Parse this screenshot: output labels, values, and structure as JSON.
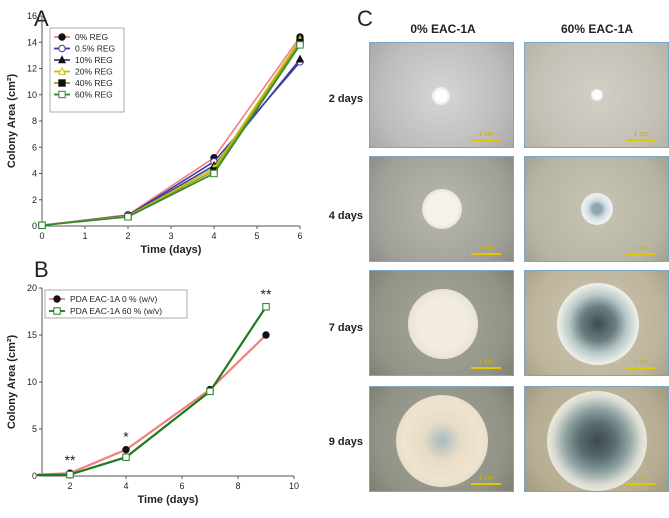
{
  "panels": {
    "A": "A",
    "B": "B",
    "C": "C"
  },
  "chart_data": [
    {
      "type": "line",
      "panel": "A",
      "title": "",
      "xlabel": "Time (days)",
      "ylabel": "Colony Area (cm²)",
      "xlim": [
        0,
        6
      ],
      "ylim": [
        0,
        16
      ],
      "xticks": [
        0,
        1,
        2,
        3,
        4,
        5,
        6
      ],
      "yticks": [
        0,
        2,
        4,
        6,
        8,
        10,
        12,
        14,
        16
      ],
      "legend_position": "top-left",
      "x": [
        0,
        2,
        4,
        6
      ],
      "series": [
        {
          "name": "0% REG",
          "values": [
            0.05,
            0.85,
            5.2,
            14.4
          ],
          "color": "#f08080",
          "marker": "filled-circle"
        },
        {
          "name": "0.5% REG",
          "values": [
            0.05,
            0.8,
            4.9,
            12.5
          ],
          "color": "#3a3aa0",
          "marker": "open-circle"
        },
        {
          "name": "10% REG",
          "values": [
            0.05,
            0.78,
            4.6,
            12.7
          ],
          "color": "#4040a8",
          "marker": "filled-triangle"
        },
        {
          "name": "20% REG",
          "values": [
            0.05,
            0.75,
            4.4,
            14.2
          ],
          "color": "#c8c000",
          "marker": "open-triangle"
        },
        {
          "name": "40% REG",
          "values": [
            0.05,
            0.72,
            4.2,
            14.0
          ],
          "color": "#9c9c20",
          "marker": "filled-square"
        },
        {
          "name": "60% REG",
          "values": [
            0.05,
            0.7,
            4.0,
            13.8
          ],
          "color": "#2e8b2e",
          "marker": "open-square"
        }
      ]
    },
    {
      "type": "line",
      "panel": "B",
      "title": "",
      "xlabel": "Time (days)",
      "ylabel": "Colony Area (cm²)",
      "xlim": [
        1,
        10
      ],
      "ylim": [
        0,
        20
      ],
      "xticks": [
        2,
        4,
        6,
        8,
        10
      ],
      "yticks": [
        0,
        5,
        10,
        15,
        20
      ],
      "legend_position": "top-left",
      "x": [
        0,
        2,
        4,
        7,
        9
      ],
      "series": [
        {
          "name": "PDA EAC-1A 0 % (w/v)",
          "values": [
            0.05,
            0.3,
            2.8,
            9.2,
            15.0
          ],
          "color": "#f08080",
          "marker": "filled-circle"
        },
        {
          "name": "PDA EAC-1A 60 % (w/v)",
          "values": [
            0.05,
            0.15,
            2.0,
            9.0,
            18.0
          ],
          "color": "#1e7a1e",
          "marker": "open-square"
        }
      ],
      "annotations": [
        {
          "x": 2,
          "text": "**"
        },
        {
          "x": 4,
          "text": "*"
        },
        {
          "x": 9,
          "text": "**"
        }
      ]
    }
  ],
  "photos": {
    "columns": [
      "0% EAC-1A",
      "60% EAC-1A"
    ],
    "rows": [
      "2 days",
      "4 days",
      "7 days",
      "9 days"
    ],
    "scale_label": "1 cm"
  }
}
